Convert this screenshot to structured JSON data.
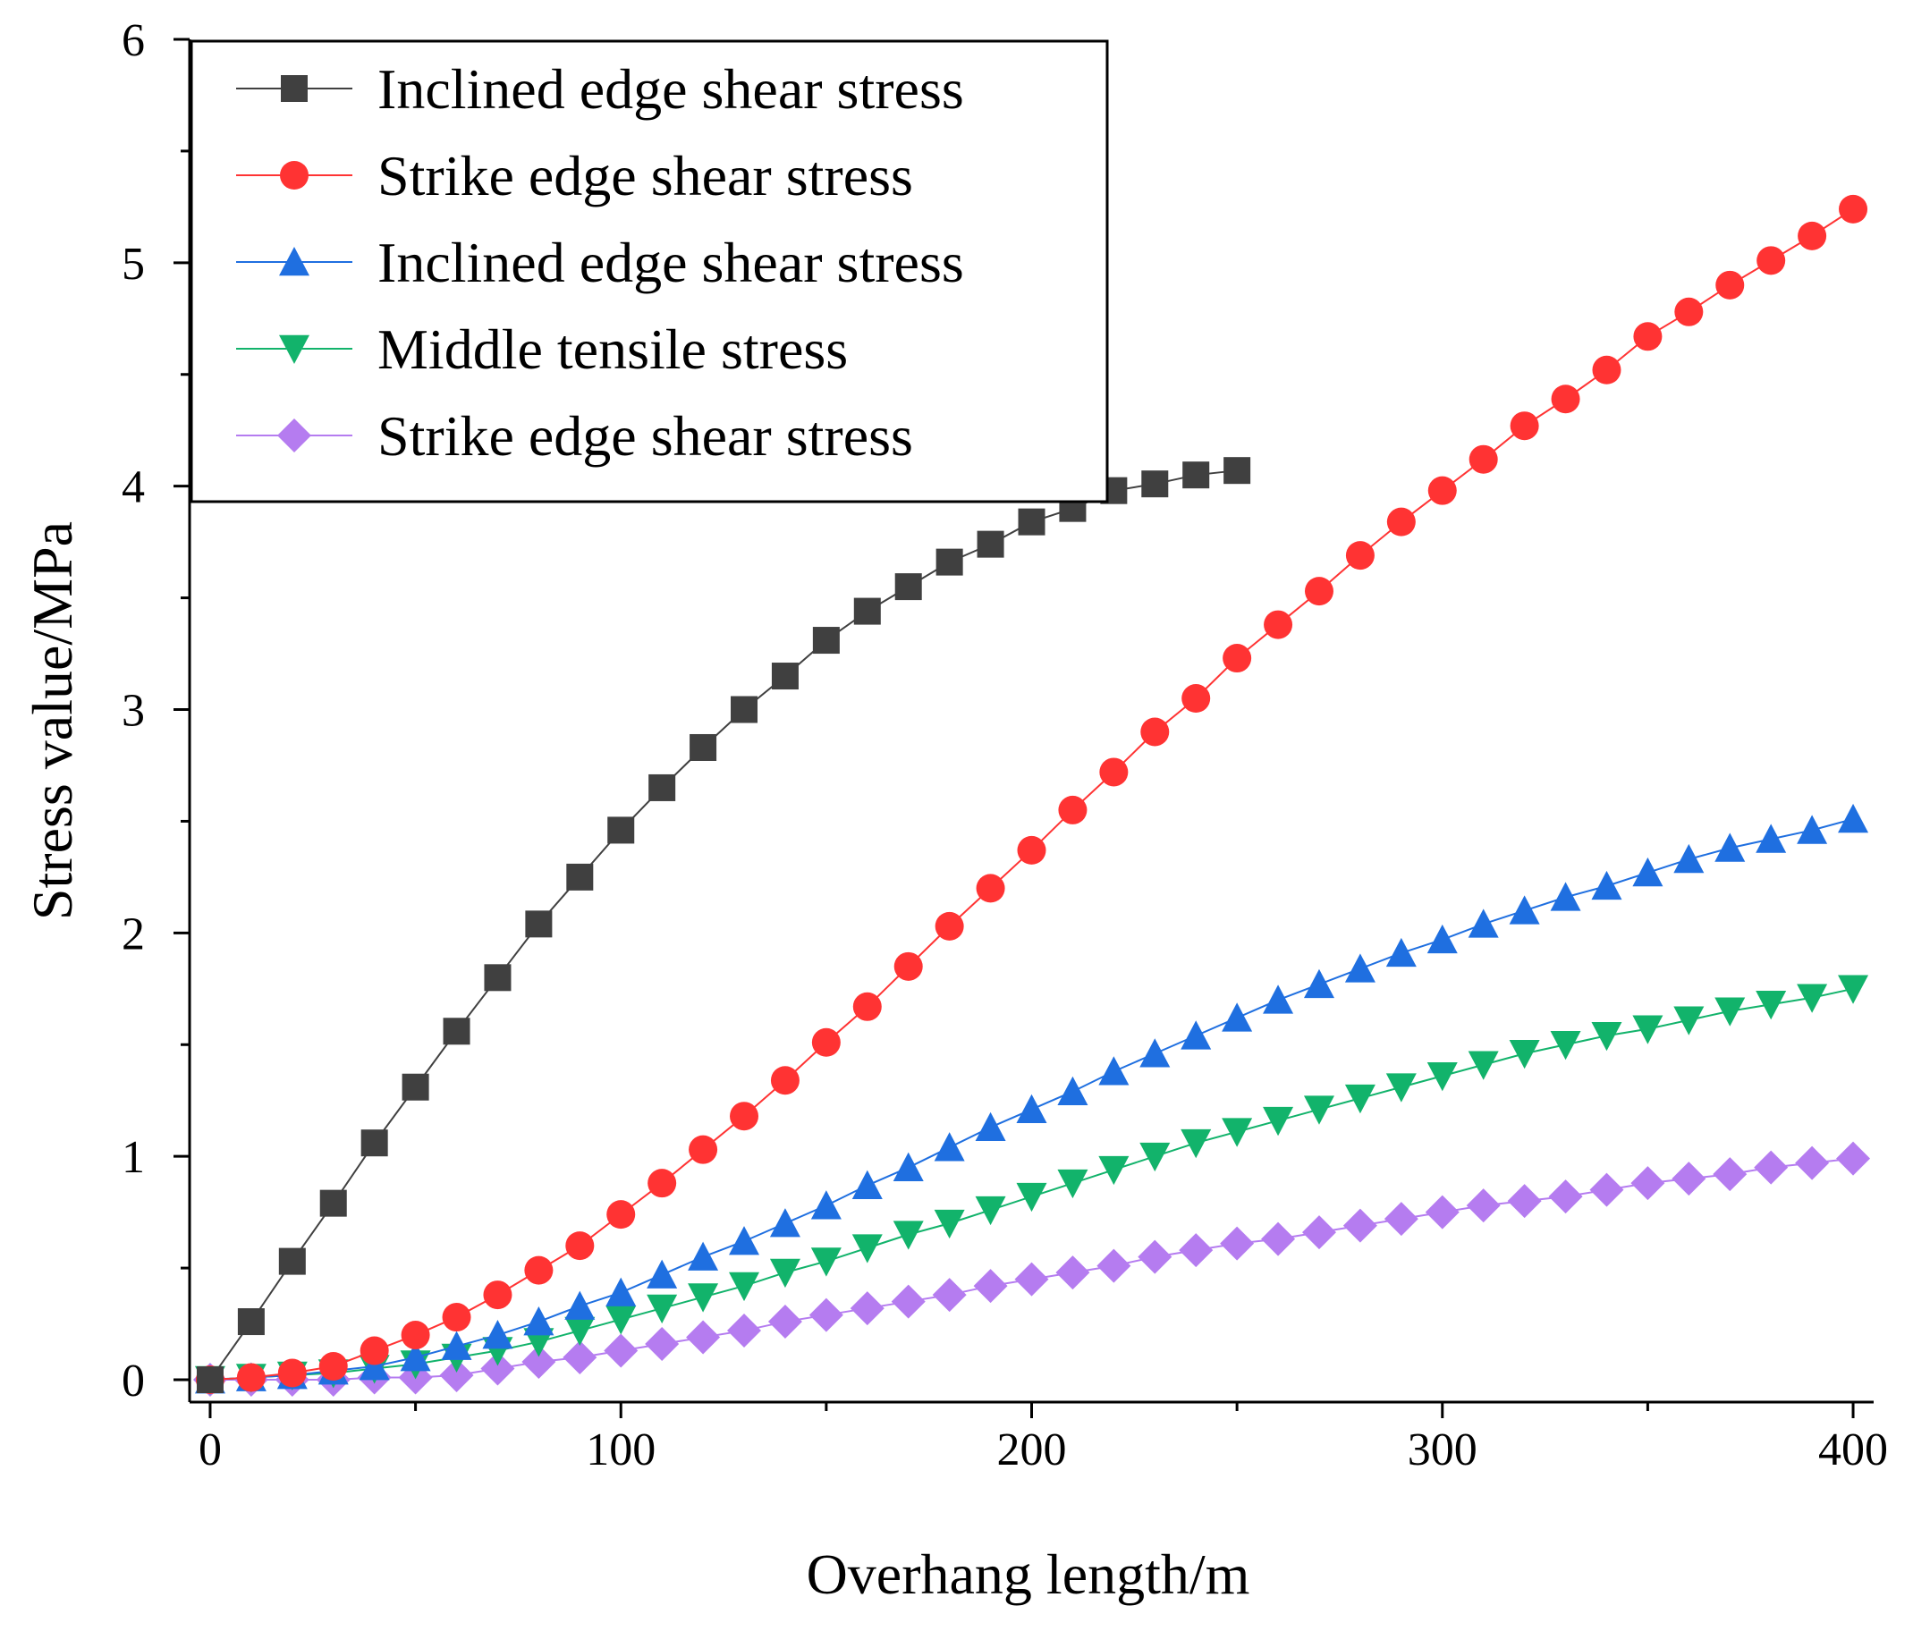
{
  "chart_data": {
    "type": "line",
    "title": "",
    "xlabel": "Overhang length/m",
    "ylabel": "Stress value/MPa",
    "xlim": [
      -5,
      405
    ],
    "ylim": [
      -0.1,
      6
    ],
    "x_ticks": [
      0,
      100,
      200,
      300,
      400
    ],
    "y_ticks": [
      0,
      1,
      2,
      3,
      4,
      5,
      6
    ],
    "legend_position": "top-left",
    "grid": false,
    "series": [
      {
        "name": "Inclined edge shear stress",
        "color": "#404040",
        "marker": "square",
        "x": [
          0,
          10,
          20,
          30,
          40,
          50,
          60,
          70,
          80,
          90,
          100,
          110,
          120,
          130,
          140,
          150,
          160,
          170,
          180,
          190,
          200,
          210,
          220,
          230,
          240,
          250
        ],
        "values": [
          0,
          0.26,
          0.53,
          0.79,
          1.06,
          1.31,
          1.56,
          1.8,
          2.04,
          2.25,
          2.46,
          2.65,
          2.83,
          3.0,
          3.15,
          3.31,
          3.44,
          3.55,
          3.66,
          3.74,
          3.84,
          3.9,
          3.98,
          4.01,
          4.05,
          4.07
        ]
      },
      {
        "name": "Strike edge shear stress",
        "color": "#ff3333",
        "marker": "circle",
        "x": [
          0,
          10,
          20,
          30,
          40,
          50,
          60,
          70,
          80,
          90,
          100,
          110,
          120,
          130,
          140,
          150,
          160,
          170,
          180,
          190,
          200,
          210,
          220,
          230,
          240,
          250,
          260,
          270,
          280,
          290,
          300,
          310,
          320,
          330,
          340,
          350,
          360,
          370,
          380,
          390,
          400
        ],
        "values": [
          0,
          0.01,
          0.03,
          0.06,
          0.13,
          0.2,
          0.28,
          0.38,
          0.49,
          0.6,
          0.74,
          0.88,
          1.03,
          1.18,
          1.34,
          1.51,
          1.67,
          1.85,
          2.03,
          2.2,
          2.37,
          2.55,
          2.72,
          2.9,
          3.05,
          3.23,
          3.38,
          3.53,
          3.69,
          3.84,
          3.98,
          4.12,
          4.27,
          4.39,
          4.52,
          4.67,
          4.78,
          4.9,
          5.01,
          5.12,
          5.24
        ]
      },
      {
        "name": "Inclined edge shear stress",
        "color": "#1f6fe0",
        "marker": "triangle-up",
        "x": [
          0,
          10,
          20,
          30,
          40,
          50,
          60,
          70,
          80,
          90,
          100,
          110,
          120,
          130,
          140,
          150,
          160,
          170,
          180,
          190,
          200,
          210,
          220,
          230,
          240,
          250,
          260,
          270,
          280,
          290,
          300,
          310,
          320,
          330,
          340,
          350,
          360,
          370,
          380,
          390,
          400
        ],
        "values": [
          0,
          0.01,
          0.02,
          0.04,
          0.06,
          0.1,
          0.15,
          0.2,
          0.26,
          0.33,
          0.39,
          0.47,
          0.55,
          0.62,
          0.7,
          0.78,
          0.87,
          0.95,
          1.04,
          1.13,
          1.21,
          1.29,
          1.38,
          1.46,
          1.54,
          1.62,
          1.7,
          1.77,
          1.84,
          1.91,
          1.97,
          2.04,
          2.1,
          2.16,
          2.21,
          2.27,
          2.33,
          2.38,
          2.42,
          2.46,
          2.51
        ]
      },
      {
        "name": "Middle tensile stress",
        "color": "#12b36b",
        "marker": "triangle-down",
        "x": [
          0,
          10,
          20,
          30,
          40,
          50,
          60,
          70,
          80,
          90,
          100,
          110,
          120,
          130,
          140,
          150,
          160,
          170,
          180,
          190,
          200,
          210,
          220,
          230,
          240,
          250,
          260,
          270,
          280,
          290,
          300,
          310,
          320,
          330,
          340,
          350,
          360,
          370,
          380,
          390,
          400
        ],
        "values": [
          0,
          0.01,
          0.02,
          0.03,
          0.05,
          0.07,
          0.1,
          0.13,
          0.17,
          0.22,
          0.27,
          0.32,
          0.37,
          0.42,
          0.48,
          0.53,
          0.59,
          0.65,
          0.7,
          0.76,
          0.82,
          0.88,
          0.94,
          1.0,
          1.06,
          1.11,
          1.16,
          1.21,
          1.26,
          1.31,
          1.36,
          1.41,
          1.46,
          1.5,
          1.54,
          1.57,
          1.61,
          1.65,
          1.68,
          1.71,
          1.75
        ]
      },
      {
        "name": "Strike edge shear stress",
        "color": "#b57cf0",
        "marker": "diamond",
        "x": [
          0,
          10,
          20,
          30,
          40,
          50,
          60,
          70,
          80,
          90,
          100,
          110,
          120,
          130,
          140,
          150,
          160,
          170,
          180,
          190,
          200,
          210,
          220,
          230,
          240,
          250,
          260,
          270,
          280,
          290,
          300,
          310,
          320,
          330,
          340,
          350,
          360,
          370,
          380,
          390,
          400
        ],
        "values": [
          0,
          0.0,
          0.0,
          0.0,
          0.01,
          0.01,
          0.02,
          0.05,
          0.08,
          0.1,
          0.13,
          0.16,
          0.19,
          0.22,
          0.26,
          0.29,
          0.32,
          0.35,
          0.38,
          0.42,
          0.45,
          0.48,
          0.51,
          0.55,
          0.58,
          0.61,
          0.63,
          0.66,
          0.69,
          0.72,
          0.75,
          0.78,
          0.8,
          0.82,
          0.85,
          0.88,
          0.9,
          0.92,
          0.95,
          0.97,
          0.99
        ]
      }
    ]
  }
}
